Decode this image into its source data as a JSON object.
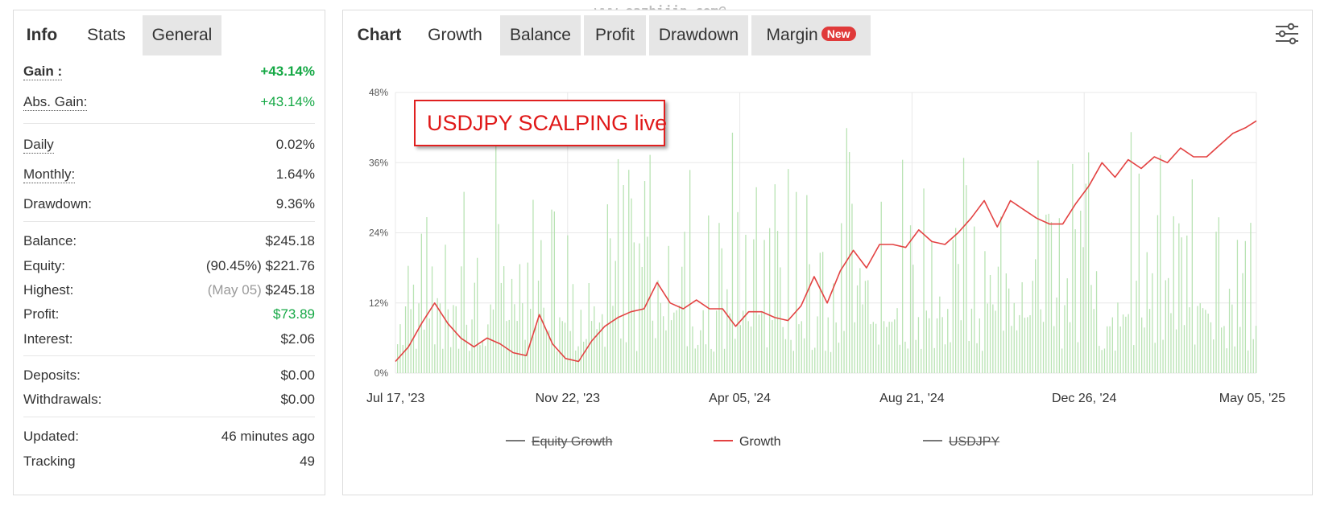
{
  "watermark": "www.eazhijin.com@",
  "left_panel": {
    "tabs": [
      {
        "label": "Info"
      },
      {
        "label": "Stats"
      },
      {
        "label": "General"
      }
    ],
    "stats": {
      "gain": {
        "label": "Gain :",
        "value": "+43.14%"
      },
      "abs_gain": {
        "label": "Abs. Gain:",
        "value": "+43.14%"
      },
      "daily": {
        "label": "Daily",
        "value": "0.02%"
      },
      "monthly": {
        "label": "Monthly:",
        "value": "1.64%"
      },
      "drawdown": {
        "label": "Drawdown:",
        "value": "9.36%"
      },
      "balance": {
        "label": "Balance:",
        "value": "$245.18"
      },
      "equity": {
        "label": "Equity:",
        "sub": "(90.45%)",
        "value": "$221.76"
      },
      "highest": {
        "label": "Highest:",
        "sub": "(May 05)",
        "value": "$245.18"
      },
      "profit": {
        "label": "Profit:",
        "value": "$73.89"
      },
      "interest": {
        "label": "Interest:",
        "value": "$2.06"
      },
      "deposits": {
        "label": "Deposits:",
        "value": "$0.00"
      },
      "withdrawals": {
        "label": "Withdrawals:",
        "value": "$0.00"
      },
      "updated": {
        "label": "Updated:",
        "value": "46 minutes ago"
      },
      "tracking": {
        "label": "Tracking",
        "value": "49"
      }
    }
  },
  "right_panel": {
    "tabs": [
      {
        "label": "Chart"
      },
      {
        "label": "Growth"
      },
      {
        "label": "Balance"
      },
      {
        "label": "Profit"
      },
      {
        "label": "Drawdown"
      },
      {
        "label": "Margin",
        "badge": "New"
      }
    ],
    "settings_icon": "sliders-icon",
    "annotation": "USDJPY SCALPING live",
    "legend": [
      {
        "label": "Equity Growth",
        "enabled": false,
        "color": "#777777"
      },
      {
        "label": "Growth",
        "enabled": true,
        "color": "#e34242"
      },
      {
        "label": "USDJPY",
        "enabled": false,
        "color": "#777777"
      }
    ]
  },
  "chart_data": {
    "type": "line",
    "ylim": [
      0,
      48
    ],
    "y_ticks": [
      "0%",
      "12%",
      "24%",
      "36%",
      "48%"
    ],
    "x_ticks": [
      "Jul 17, '23",
      "Nov 22, '23",
      "Apr 05, '24",
      "Aug 21, '24",
      "Dec 26, '24",
      "May 05, '25"
    ],
    "x_range": [
      "2023-07-17",
      "2025-05-05"
    ],
    "grid": true,
    "bar_color": "#b9e3b4",
    "series": [
      {
        "name": "Growth",
        "color": "#e34242",
        "points": [
          [
            "2023-07-17",
            2.0
          ],
          [
            "2023-07-27",
            4.5
          ],
          [
            "2023-08-06",
            8.5
          ],
          [
            "2023-08-16",
            12.0
          ],
          [
            "2023-08-26",
            8.5
          ],
          [
            "2023-09-05",
            6.0
          ],
          [
            "2023-09-15",
            4.5
          ],
          [
            "2023-09-25",
            6.0
          ],
          [
            "2023-10-05",
            5.0
          ],
          [
            "2023-10-15",
            3.5
          ],
          [
            "2023-10-25",
            3.0
          ],
          [
            "2023-11-04",
            10.0
          ],
          [
            "2023-11-14",
            5.0
          ],
          [
            "2023-11-24",
            2.5
          ],
          [
            "2023-12-04",
            2.0
          ],
          [
            "2023-12-14",
            5.5
          ],
          [
            "2023-12-24",
            8.0
          ],
          [
            "2024-01-03",
            9.5
          ],
          [
            "2024-01-13",
            10.5
          ],
          [
            "2024-01-23",
            11.0
          ],
          [
            "2024-02-02",
            15.5
          ],
          [
            "2024-02-12",
            12.0
          ],
          [
            "2024-02-22",
            11.0
          ],
          [
            "2024-03-03",
            12.5
          ],
          [
            "2024-03-13",
            11.0
          ],
          [
            "2024-03-23",
            11.0
          ],
          [
            "2024-04-02",
            8.0
          ],
          [
            "2024-04-12",
            10.5
          ],
          [
            "2024-04-22",
            10.5
          ],
          [
            "2024-05-02",
            9.5
          ],
          [
            "2024-05-12",
            9.0
          ],
          [
            "2024-05-22",
            11.5
          ],
          [
            "2024-06-01",
            16.5
          ],
          [
            "2024-06-11",
            12.0
          ],
          [
            "2024-06-21",
            17.5
          ],
          [
            "2024-07-01",
            21.0
          ],
          [
            "2024-07-11",
            18.0
          ],
          [
            "2024-07-21",
            22.0
          ],
          [
            "2024-07-31",
            22.0
          ],
          [
            "2024-08-10",
            21.5
          ],
          [
            "2024-08-20",
            24.5
          ],
          [
            "2024-08-30",
            22.5
          ],
          [
            "2024-09-09",
            22.0
          ],
          [
            "2024-09-19",
            24.0
          ],
          [
            "2024-09-29",
            26.5
          ],
          [
            "2024-10-09",
            29.5
          ],
          [
            "2024-10-19",
            25.0
          ],
          [
            "2024-10-29",
            29.5
          ],
          [
            "2024-11-08",
            28.0
          ],
          [
            "2024-11-18",
            26.5
          ],
          [
            "2024-11-28",
            25.5
          ],
          [
            "2024-12-08",
            25.5
          ],
          [
            "2024-12-18",
            29.0
          ],
          [
            "2024-12-28",
            32.0
          ],
          [
            "2025-01-07",
            36.0
          ],
          [
            "2025-01-17",
            33.5
          ],
          [
            "2025-01-27",
            36.5
          ],
          [
            "2025-02-06",
            35.0
          ],
          [
            "2025-02-16",
            37.0
          ],
          [
            "2025-02-26",
            36.0
          ],
          [
            "2025-03-08",
            38.5
          ],
          [
            "2025-03-18",
            37.0
          ],
          [
            "2025-03-28",
            37.0
          ],
          [
            "2025-04-07",
            39.0
          ],
          [
            "2025-04-17",
            41.0
          ],
          [
            "2025-04-27",
            42.0
          ],
          [
            "2025-05-05",
            43.14
          ]
        ]
      }
    ]
  }
}
